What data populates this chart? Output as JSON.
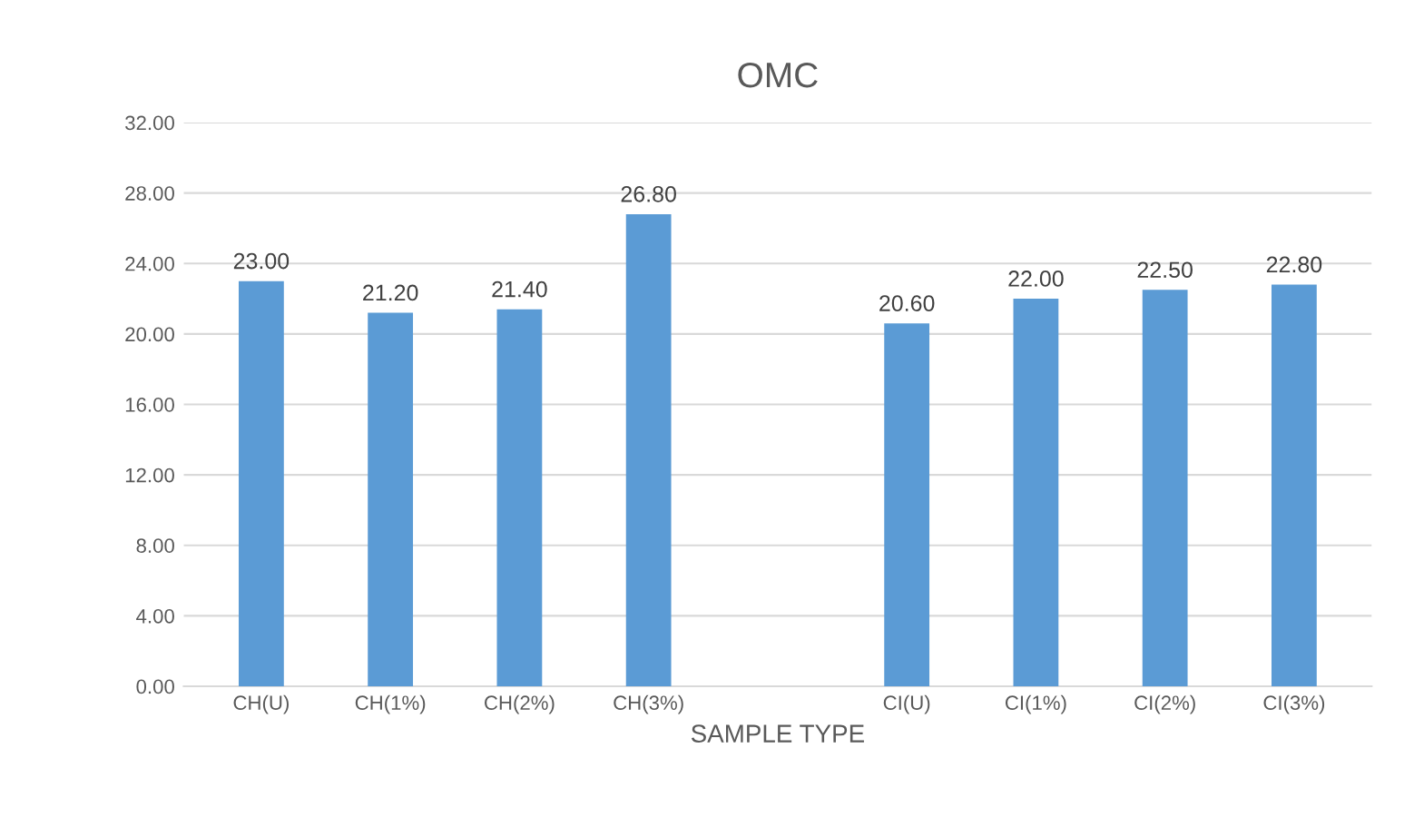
{
  "chart_data": {
    "type": "bar",
    "title": "OMC",
    "xlabel": "SAMPLE TYPE",
    "categories": [
      "CH(U)",
      "CH(1%)",
      "CH(2%)",
      "CH(3%)",
      null,
      "CI(U)",
      "CI(1%)",
      "CI(2%)",
      "CI(3%)"
    ],
    "values": [
      23.0,
      21.2,
      21.4,
      26.8,
      null,
      20.6,
      22.0,
      22.5,
      22.8
    ],
    "value_labels": [
      "23.00",
      "21.20",
      "21.40",
      "26.80",
      null,
      "20.60",
      "22.00",
      "22.50",
      "22.80"
    ],
    "color": "#5b9bd5",
    "ylim": [
      0,
      32
    ],
    "yticks": [
      {
        "value": 0,
        "label": "0.00"
      },
      {
        "value": 4,
        "label": "4.00"
      },
      {
        "value": 8,
        "label": "8.00"
      },
      {
        "value": 12,
        "label": "12.00"
      },
      {
        "value": 16,
        "label": "16.00"
      },
      {
        "value": 20,
        "label": "20.00"
      },
      {
        "value": 24,
        "label": "24.00"
      },
      {
        "value": 28,
        "label": "28.00"
      },
      {
        "value": 32,
        "label": "32.00"
      }
    ],
    "grid": "y"
  }
}
